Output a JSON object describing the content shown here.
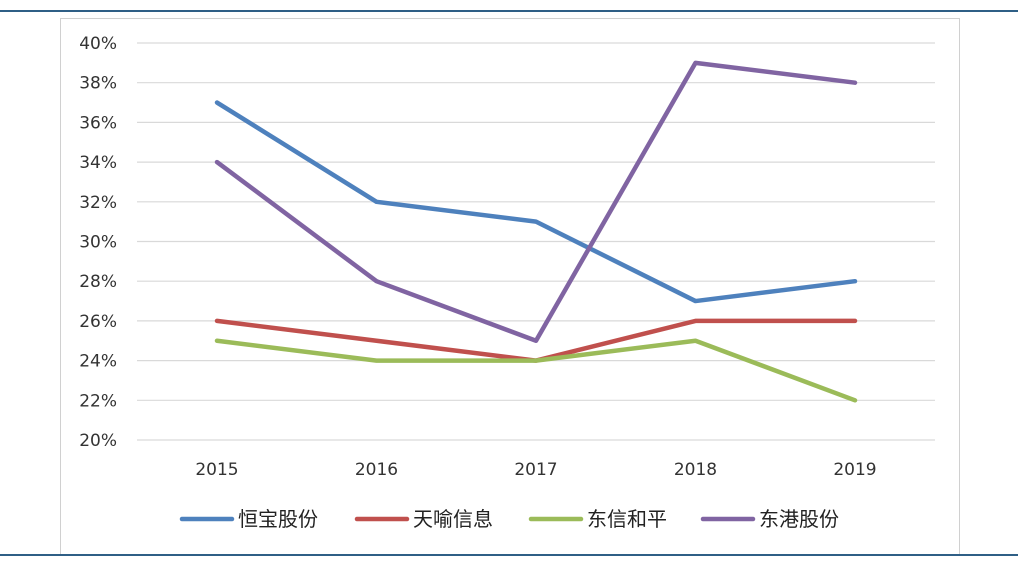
{
  "chart_data": {
    "type": "line",
    "categories": [
      "2015",
      "2016",
      "2017",
      "2018",
      "2019"
    ],
    "series": [
      {
        "name": "恒宝股份",
        "color": "#4e81bd",
        "values": [
          37,
          32,
          31,
          27,
          28
        ]
      },
      {
        "name": "天喻信息",
        "color": "#c0504d",
        "values": [
          26,
          25,
          24,
          26,
          26
        ]
      },
      {
        "name": "东信和平",
        "color": "#9bbb59",
        "values": [
          25,
          24,
          24,
          25,
          22
        ]
      },
      {
        "name": "东港股份",
        "color": "#8064a2",
        "values": [
          34,
          28,
          25,
          39,
          38
        ]
      }
    ],
    "ylim": [
      20,
      40
    ],
    "y_ticks": [
      20,
      22,
      24,
      26,
      28,
      30,
      32,
      34,
      36,
      38,
      40
    ],
    "y_tick_labels": [
      "20%",
      "22%",
      "24%",
      "26%",
      "28%",
      "30%",
      "32%",
      "34%",
      "36%",
      "38%",
      "40%"
    ],
    "grid": true,
    "legend_position": "bottom"
  }
}
